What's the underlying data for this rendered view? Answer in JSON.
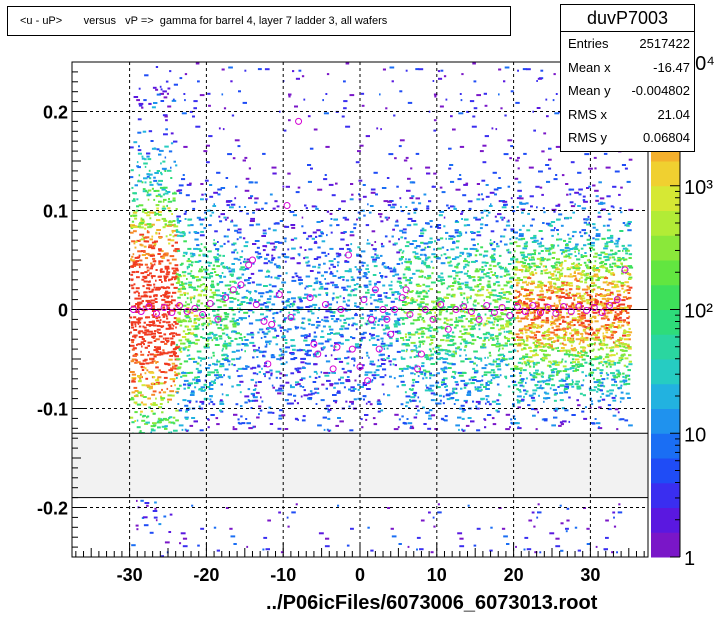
{
  "title": "<u - uP>       versus   vP =>  gamma for barrel 4, layer 7 ladder 3, all wafers",
  "stats": {
    "name": "duvP7003",
    "rows": [
      {
        "label": "Entries",
        "value": "2517422"
      },
      {
        "label": "Mean x",
        "value": "-16.47"
      },
      {
        "label": "Mean y",
        "value": "-0.004802"
      },
      {
        "label": "RMS x",
        "value": "21.04"
      },
      {
        "label": "RMS y",
        "value": "0.06804"
      }
    ]
  },
  "file_label": "../P06icFiles/6073006_6073013.root",
  "chart_data": {
    "type": "heatmap",
    "xlim": [
      -37.5,
      37.5
    ],
    "ylim": [
      -0.25,
      0.25
    ],
    "x_ticks": [
      -30,
      -20,
      -10,
      0,
      10,
      20,
      30
    ],
    "x_tick_labels": [
      "-30",
      "-20",
      "-10",
      "0",
      "10",
      "20",
      "30"
    ],
    "y_ticks": [
      -0.2,
      -0.1,
      0,
      0.1,
      0.2
    ],
    "y_tick_labels": [
      "-0.2",
      "-0.1",
      "0",
      "0.1",
      "0.2"
    ],
    "grid": true,
    "z_scale": "log",
    "z_ticks": [
      1,
      10,
      100,
      1000,
      10000
    ],
    "z_tick_labels": [
      "1",
      "10",
      "10²",
      "10³",
      "10⁴"
    ],
    "gap_band_y": [
      -0.19,
      -0.125
    ],
    "profile_points": [
      [
        -29.5,
        0.0
      ],
      [
        -28.5,
        -0.002
      ],
      [
        -27.5,
        0.003
      ],
      [
        -26.5,
        -0.004
      ],
      [
        -25.5,
        0.002
      ],
      [
        -24.5,
        -0.003
      ],
      [
        -23.5,
        0.004
      ],
      [
        -22.5,
        -0.002
      ],
      [
        -21.5,
        0.001
      ],
      [
        -20.5,
        -0.005
      ],
      [
        -19.5,
        0.006
      ],
      [
        -18.5,
        -0.01
      ],
      [
        -17.5,
        0.012
      ],
      [
        -16.5,
        0.02
      ],
      [
        -15.5,
        0.025
      ],
      [
        -14.5,
        0.045
      ],
      [
        -14.0,
        0.05
      ],
      [
        -13.5,
        0.005
      ],
      [
        -12.5,
        -0.012
      ],
      [
        -12.0,
        -0.055
      ],
      [
        -11.5,
        -0.015
      ],
      [
        -10.5,
        0.015
      ],
      [
        -9.5,
        0.105
      ],
      [
        -9.0,
        -0.008
      ],
      [
        -8.0,
        0.19
      ],
      [
        -6.5,
        0.012
      ],
      [
        -6.0,
        -0.035
      ],
      [
        -5.5,
        -0.045
      ],
      [
        -4.5,
        0.005
      ],
      [
        -3.5,
        -0.06
      ],
      [
        -3.0,
        -0.038
      ],
      [
        -2.5,
        0.0
      ],
      [
        -1.5,
        0.055
      ],
      [
        -1.0,
        -0.04
      ],
      [
        0.0,
        -0.058
      ],
      [
        0.5,
        0.01
      ],
      [
        1.0,
        -0.072
      ],
      [
        1.5,
        -0.01
      ],
      [
        2.0,
        0.02
      ],
      [
        2.5,
        -0.04
      ],
      [
        3.0,
        0.0
      ],
      [
        3.5,
        -0.01
      ],
      [
        4.0,
        -0.025
      ],
      [
        4.5,
        0.0
      ],
      [
        5.5,
        0.012
      ],
      [
        6.0,
        0.02
      ],
      [
        6.5,
        -0.005
      ],
      [
        7.5,
        -0.06
      ],
      [
        8.0,
        -0.045
      ],
      [
        8.5,
        0.0
      ],
      [
        9.5,
        -0.01
      ],
      [
        10.5,
        0.005
      ],
      [
        11.5,
        -0.02
      ],
      [
        12.5,
        0.0
      ],
      [
        13.5,
        0.003
      ],
      [
        14.5,
        -0.002
      ],
      [
        15.5,
        -0.01
      ],
      [
        16.5,
        0.004
      ],
      [
        17.5,
        -0.003
      ],
      [
        18.5,
        0.002
      ],
      [
        19.5,
        -0.006
      ],
      [
        20.5,
        0.003
      ],
      [
        21.5,
        -0.002
      ],
      [
        22.5,
        0.004
      ],
      [
        23.5,
        -0.003
      ],
      [
        24.5,
        0.002
      ],
      [
        25.5,
        -0.004
      ],
      [
        26.5,
        0.003
      ],
      [
        27.5,
        -0.002
      ],
      [
        28.5,
        0.003
      ],
      [
        29.5,
        -0.001
      ],
      [
        30.5,
        0.002
      ],
      [
        31.5,
        -0.003
      ],
      [
        32.5,
        0.004
      ],
      [
        33.5,
        0.01
      ],
      [
        34.5,
        0.04
      ]
    ]
  }
}
